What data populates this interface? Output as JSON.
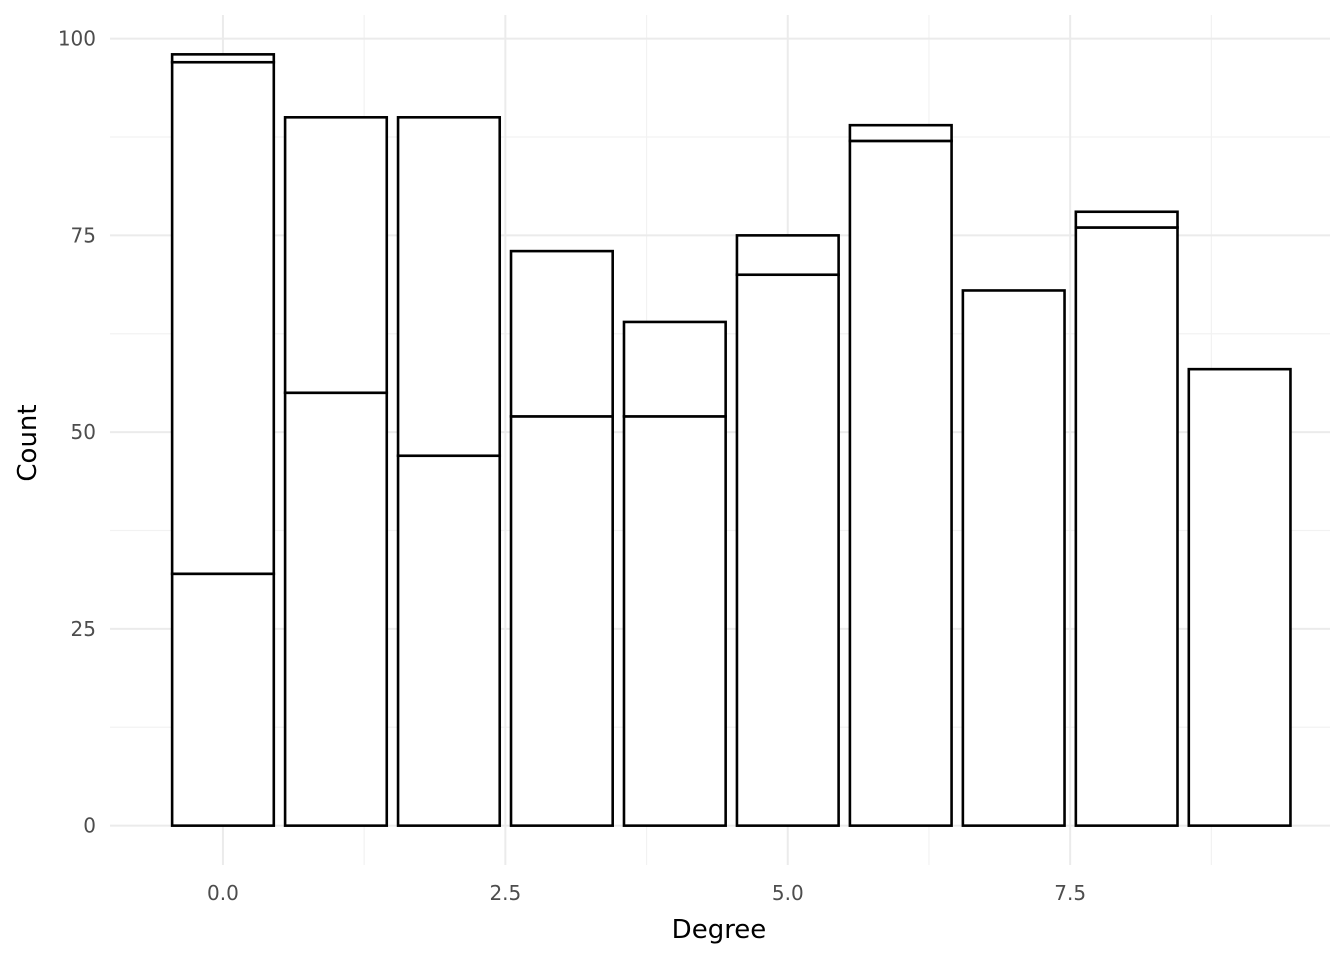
{
  "chart_data": {
    "type": "bar",
    "stacked": true,
    "xlabel": "Degree",
    "ylabel": "Count",
    "xlim": [
      -1,
      9.8
    ],
    "ylim": [
      -5,
      103
    ],
    "x_ticks": [
      0,
      2.5,
      5,
      7.5
    ],
    "x_tick_labels": [
      "0.0",
      "2.5",
      "5.0",
      "7.5"
    ],
    "y_ticks": [
      0,
      25,
      50,
      75,
      100
    ],
    "y_tick_labels": [
      "0",
      "25",
      "50",
      "75",
      "100"
    ],
    "grid": true,
    "legend": "none",
    "bars": [
      {
        "x": 0,
        "segments": [
          32,
          65,
          1
        ]
      },
      {
        "x": 1,
        "segments": [
          55,
          35
        ]
      },
      {
        "x": 2,
        "segments": [
          47,
          43
        ]
      },
      {
        "x": 3,
        "segments": [
          52,
          21
        ]
      },
      {
        "x": 4,
        "segments": [
          52,
          12
        ]
      },
      {
        "x": 5,
        "segments": [
          70,
          5
        ]
      },
      {
        "x": 6,
        "segments": [
          87,
          2
        ]
      },
      {
        "x": 7,
        "segments": [
          68
        ]
      },
      {
        "x": 8,
        "segments": [
          76,
          2
        ]
      },
      {
        "x": 9,
        "segments": [
          58
        ]
      }
    ],
    "bar_width": 0.9
  }
}
